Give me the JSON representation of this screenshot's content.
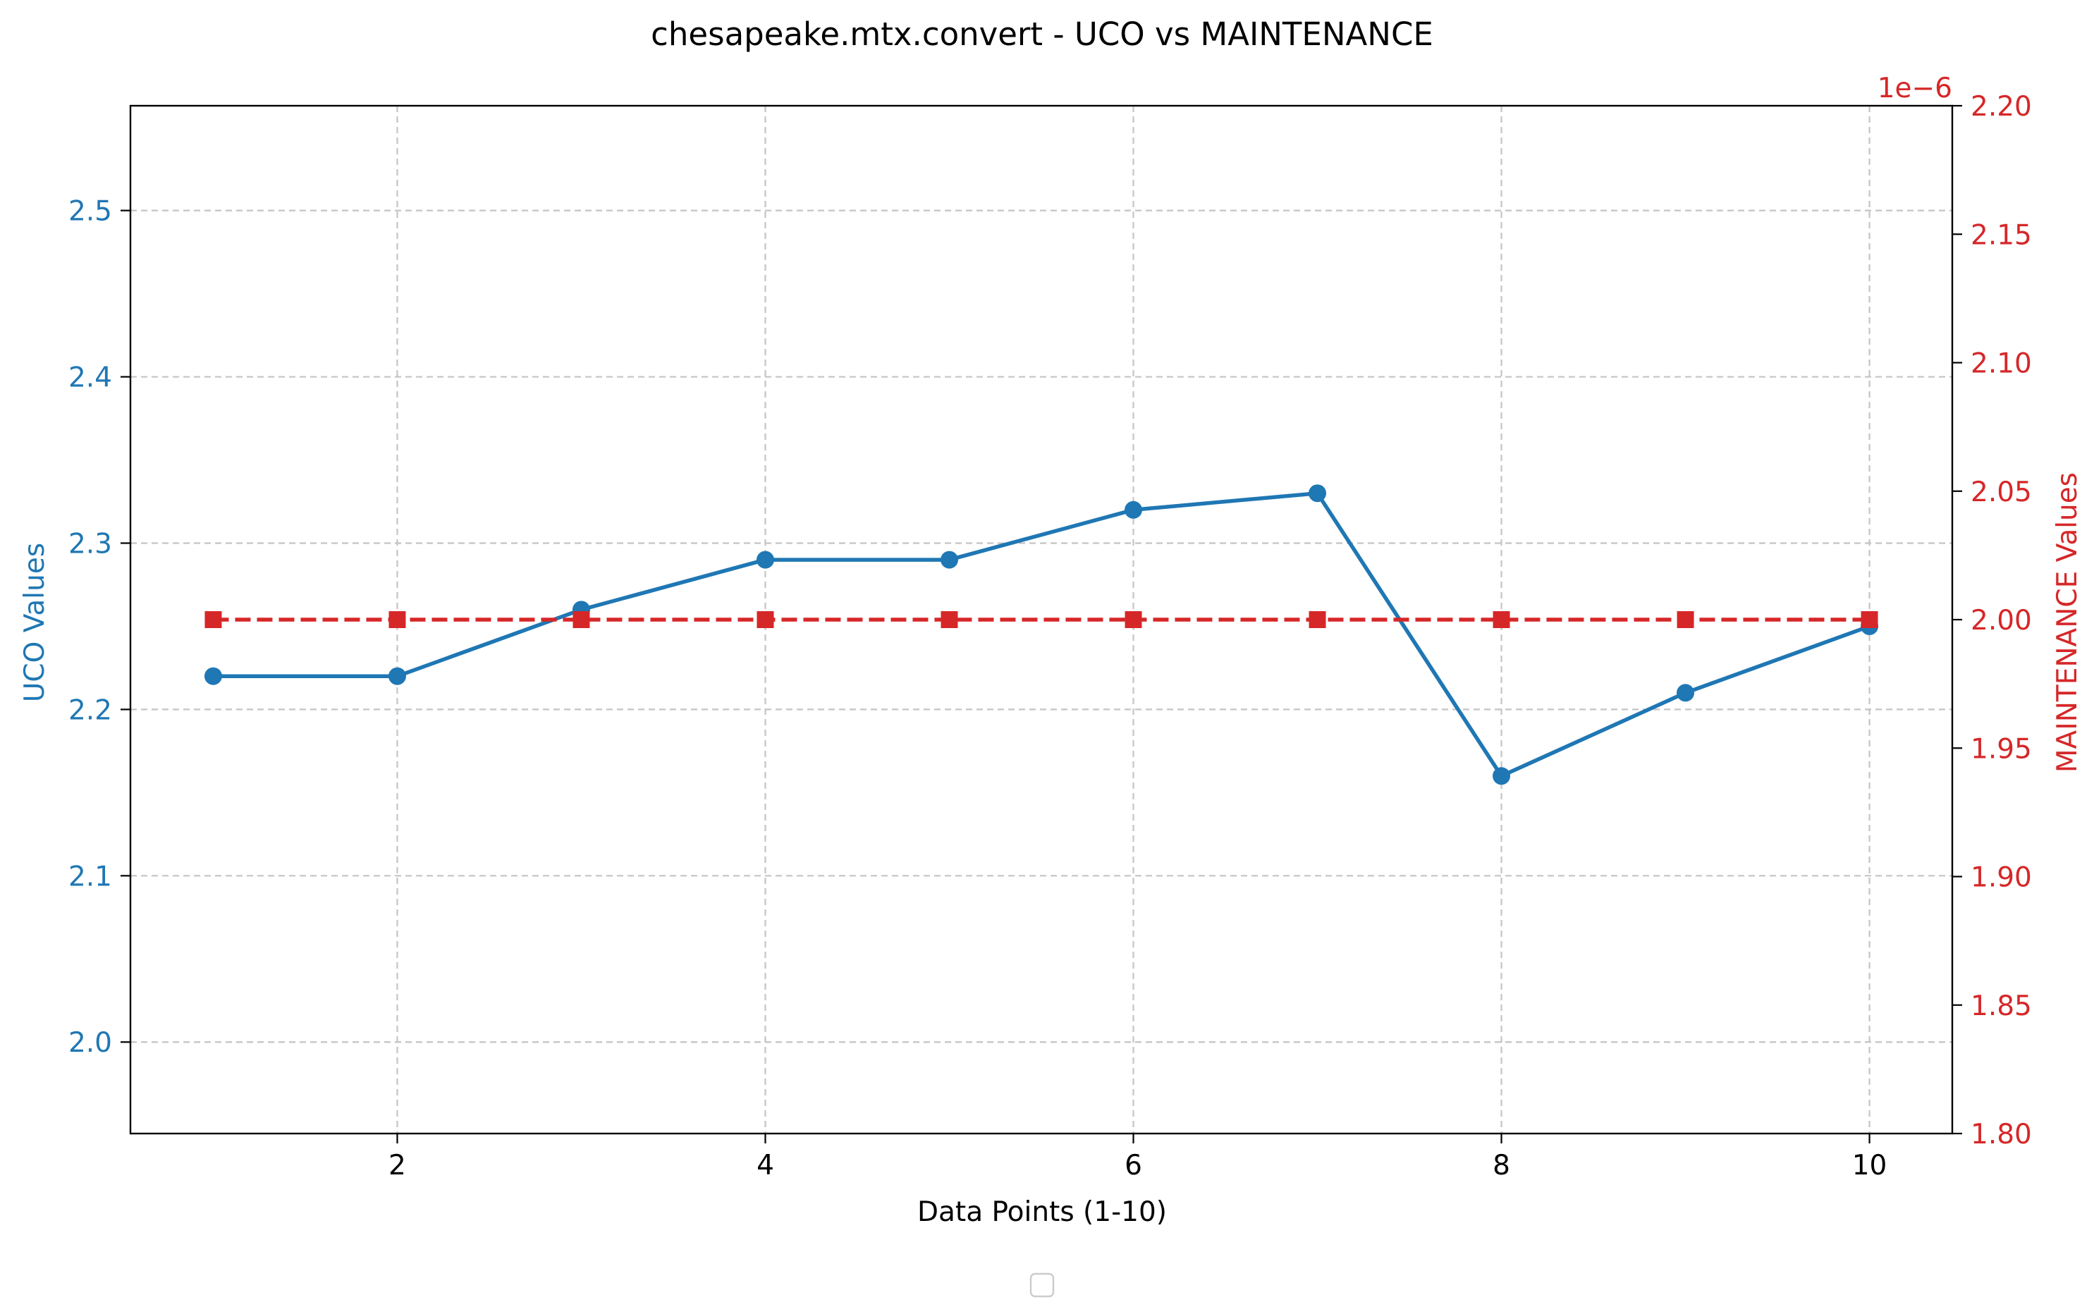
{
  "chart_data": {
    "type": "line",
    "title": "chesapeake.mtx.convert - UCO vs MAINTENANCE",
    "xlabel": "Data Points (1-10)",
    "ylabel_left": "UCO Values",
    "ylabel_right": "MAINTENANCE Values",
    "right_axis_offset_text": "1e−6",
    "xlim": [
      0.55,
      10.45
    ],
    "ylim_left": [
      1.945,
      2.563
    ],
    "ylim_right": [
      1.8,
      2.2
    ],
    "x_ticks": [
      2,
      4,
      6,
      8,
      10
    ],
    "x_tick_labels": [
      "2",
      "4",
      "6",
      "8",
      "10"
    ],
    "y_left_ticks": [
      2.0,
      2.1,
      2.2,
      2.3,
      2.4,
      2.5
    ],
    "y_left_tick_labels": [
      "2.0",
      "2.1",
      "2.2",
      "2.3",
      "2.4",
      "2.5"
    ],
    "y_right_ticks": [
      1.8,
      1.85,
      1.9,
      1.95,
      2.0,
      2.05,
      2.1,
      2.15,
      2.2
    ],
    "y_right_tick_labels": [
      "1.80",
      "1.85",
      "1.90",
      "1.95",
      "2.00",
      "2.05",
      "2.10",
      "2.15",
      "2.20"
    ],
    "grid": true,
    "legend": "bottom-center (empty)",
    "x": [
      1,
      2,
      3,
      4,
      5,
      6,
      7,
      8,
      9,
      10
    ],
    "series": [
      {
        "axis": "left",
        "color": "#1f77b4",
        "marker": "circle",
        "line_style": "solid",
        "values": [
          2.22,
          2.22,
          2.26,
          2.29,
          2.29,
          2.32,
          2.33,
          2.16,
          2.21,
          2.25
        ]
      },
      {
        "axis": "right",
        "color": "#d62728",
        "marker": "square",
        "line_style": "dashed",
        "values": [
          2.0,
          2.0,
          2.0,
          2.0,
          2.0,
          2.0,
          2.0,
          2.0,
          2.0,
          2.0
        ]
      }
    ],
    "colors": {
      "left_axis": "#1f77b4",
      "right_axis": "#d62728",
      "grid": "#c4c4c4",
      "text": "#000000"
    }
  }
}
